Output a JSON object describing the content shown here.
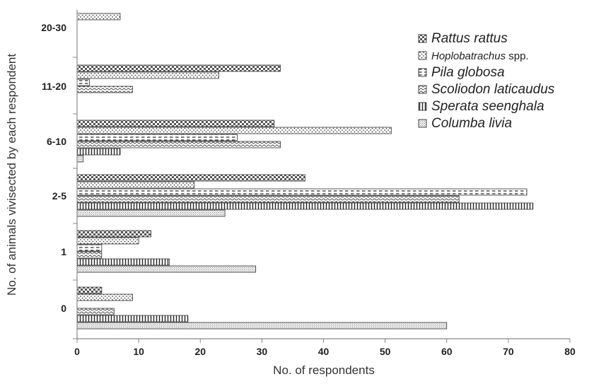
{
  "chart_data": {
    "type": "bar",
    "orientation": "horizontal",
    "categories": [
      "0",
      "1",
      "2-5",
      "6-10",
      "11-20",
      "20-30"
    ],
    "xlabel": "No. of respondents",
    "ylabel": "No. of animals vivisected by each respondent",
    "xlim": [
      0,
      80
    ],
    "xticks": [
      0,
      10,
      20,
      30,
      40,
      50,
      60,
      70,
      80
    ],
    "grid": false,
    "legend_position": "top-right",
    "series": [
      {
        "name": "Rattus rattus",
        "legend_italic": "Rattus rattus",
        "legend_suffix": "",
        "pattern": "checker",
        "values": [
          4,
          12,
          37,
          32,
          33,
          0
        ]
      },
      {
        "name": "Hoplobatrachus spp.",
        "legend_italic": "Hoplobatrachus",
        "legend_suffix": " spp.",
        "pattern": "dots",
        "values": [
          9,
          10,
          19,
          51,
          23,
          7
        ]
      },
      {
        "name": "Pila globosa",
        "legend_italic": "Pila globosa",
        "legend_suffix": "",
        "pattern": "dashes",
        "values": [
          0,
          4,
          73,
          26,
          2,
          0
        ]
      },
      {
        "name": "Scoliodon laticaudus",
        "legend_italic": "Scoliodon laticaudus",
        "legend_suffix": "",
        "pattern": "waves",
        "values": [
          6,
          4,
          62,
          33,
          9,
          0
        ]
      },
      {
        "name": "Sperata seenghala",
        "legend_italic": "Sperata seenghala",
        "legend_suffix": "",
        "pattern": "vlines",
        "values": [
          18,
          15,
          74,
          7,
          0,
          0
        ]
      },
      {
        "name": "Columba livia",
        "legend_italic": "Columba livia",
        "legend_suffix": "",
        "pattern": "stipple",
        "values": [
          60,
          29,
          24,
          1,
          0,
          0
        ]
      }
    ]
  }
}
